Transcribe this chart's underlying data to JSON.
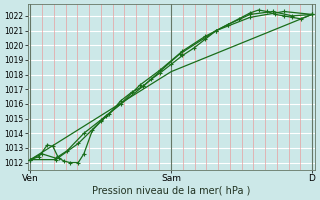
{
  "xlabel": "Pression niveau de la mer( hPa )",
  "bg_color": "#cce8e8",
  "plot_bg": "#cce8e8",
  "grid_h_color": "#ffffff",
  "grid_v_color": "#e8a0a0",
  "tick_line_color": "#667766",
  "line_color": "#1a6e1a",
  "marker_color": "#1a6e1a",
  "ylim": [
    1011.5,
    1022.8
  ],
  "yticks": [
    1012,
    1013,
    1014,
    1015,
    1016,
    1017,
    1018,
    1019,
    1020,
    1021,
    1022
  ],
  "xtick_labels": [
    "Ven",
    "Sam",
    "D"
  ],
  "xtick_positions": [
    0.0,
    0.5,
    1.0
  ],
  "figsize": [
    3.2,
    2.0
  ],
  "dpi": 100,
  "series": [
    [
      0.0,
      1012.2,
      0.03,
      1012.4,
      0.06,
      1013.2,
      0.08,
      1013.1,
      0.1,
      1012.3,
      0.12,
      1012.1,
      0.14,
      1012.0,
      0.17,
      1012.0,
      0.19,
      1012.6,
      0.22,
      1014.2,
      0.25,
      1014.8,
      0.28,
      1015.3,
      0.32,
      1016.2,
      0.36,
      1016.8,
      0.4,
      1017.2,
      0.43,
      1017.7,
      0.46,
      1018.1,
      0.5,
      1018.7,
      0.54,
      1019.3,
      0.58,
      1019.8,
      0.62,
      1020.4,
      0.66,
      1021.0,
      0.7,
      1021.4,
      0.74,
      1021.8,
      0.78,
      1022.2,
      0.81,
      1022.4,
      0.84,
      1022.3,
      0.87,
      1022.1,
      0.9,
      1022.0,
      0.93,
      1021.9,
      0.96,
      1021.8,
      1.0,
      1022.1
    ],
    [
      0.0,
      1012.2,
      0.04,
      1012.6,
      0.09,
      1012.3,
      0.13,
      1012.8,
      0.19,
      1014.0,
      0.25,
      1014.9,
      0.32,
      1016.0,
      0.39,
      1017.3,
      0.46,
      1018.3,
      0.54,
      1019.6,
      0.62,
      1020.6,
      0.7,
      1021.4,
      0.78,
      1022.1,
      0.86,
      1022.3,
      0.93,
      1022.0,
      1.0,
      1022.1
    ],
    [
      0.0,
      1012.2,
      0.09,
      1012.2,
      0.17,
      1013.3,
      0.27,
      1015.2,
      0.4,
      1017.2,
      0.53,
      1019.4,
      0.66,
      1021.0,
      0.78,
      1021.9,
      0.9,
      1022.3,
      1.0,
      1022.1
    ],
    [
      0.0,
      1012.2,
      0.5,
      1018.2,
      1.0,
      1022.1
    ]
  ]
}
